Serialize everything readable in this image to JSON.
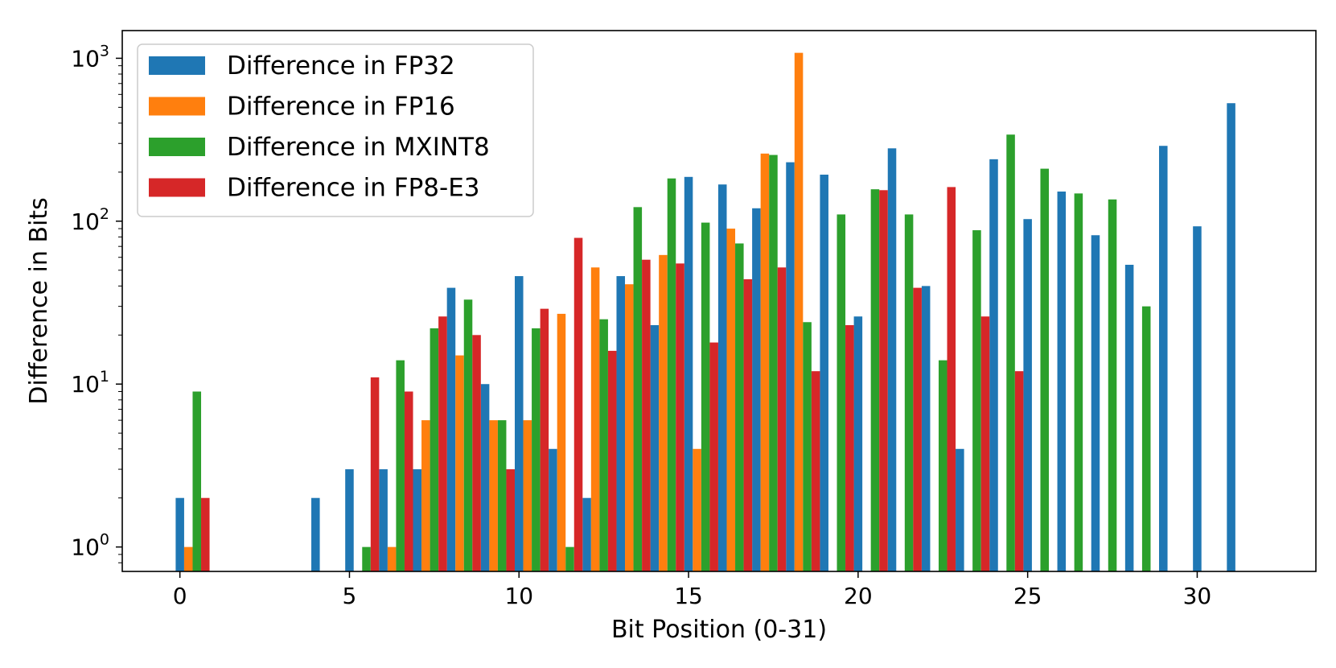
{
  "chart_data": {
    "type": "bar",
    "xlabel": "Bit Position (0-31)",
    "ylabel": "Difference in Bits",
    "xlim": [
      -1.7,
      33.5
    ],
    "ylim_log10": [
      -0.15,
      3.17
    ],
    "yscale": "log",
    "x_ticks": [
      0,
      5,
      10,
      15,
      20,
      25,
      30
    ],
    "y_ticks": [
      {
        "base": "10",
        "exp": "0",
        "value": 1
      },
      {
        "base": "10",
        "exp": "1",
        "value": 10
      },
      {
        "base": "10",
        "exp": "2",
        "value": 100
      },
      {
        "base": "10",
        "exp": "3",
        "value": 1000
      }
    ],
    "legend_position": "top-left",
    "grid": false,
    "bar_width": 0.25,
    "series": [
      {
        "name": "Difference in FP32",
        "color": "#1f77b4",
        "offset": 0,
        "points": [
          [
            0,
            2
          ],
          [
            4,
            2
          ],
          [
            5,
            3
          ],
          [
            6,
            3
          ],
          [
            7,
            3
          ],
          [
            8,
            39
          ],
          [
            9,
            10
          ],
          [
            10,
            46
          ],
          [
            11,
            4
          ],
          [
            12,
            2
          ],
          [
            13,
            46
          ],
          [
            14,
            23
          ],
          [
            15,
            187
          ],
          [
            16,
            168
          ],
          [
            17,
            120
          ],
          [
            18,
            230
          ],
          [
            19,
            193
          ],
          [
            20,
            26
          ],
          [
            21,
            280
          ],
          [
            22,
            40
          ],
          [
            23,
            4
          ],
          [
            24,
            240
          ],
          [
            25,
            103
          ],
          [
            26,
            152
          ],
          [
            27,
            82
          ],
          [
            28,
            54
          ],
          [
            29,
            290
          ],
          [
            30,
            93
          ],
          [
            31,
            530
          ]
        ]
      },
      {
        "name": "Difference in FP16",
        "color": "#ff7f0e",
        "offset": 0.25,
        "points": [
          [
            0,
            1
          ],
          [
            6,
            1
          ],
          [
            7,
            6
          ],
          [
            8,
            15
          ],
          [
            9,
            6
          ],
          [
            10,
            6
          ],
          [
            11,
            27
          ],
          [
            12,
            52
          ],
          [
            13,
            41
          ],
          [
            14,
            62
          ],
          [
            15,
            4
          ],
          [
            16,
            90
          ],
          [
            17,
            260
          ],
          [
            18,
            1080
          ]
        ]
      },
      {
        "name": "Difference in MXINT8",
        "color": "#2ca02c",
        "offset": 0.5,
        "points": [
          [
            0,
            9
          ],
          [
            5,
            1
          ],
          [
            6,
            14
          ],
          [
            7,
            22
          ],
          [
            8,
            33
          ],
          [
            9,
            6
          ],
          [
            10,
            22
          ],
          [
            11,
            1
          ],
          [
            12,
            25
          ],
          [
            13,
            122
          ],
          [
            14,
            183
          ],
          [
            15,
            98
          ],
          [
            16,
            73
          ],
          [
            17,
            255
          ],
          [
            18,
            24
          ],
          [
            19,
            110
          ],
          [
            20,
            157
          ],
          [
            21,
            110
          ],
          [
            22,
            14
          ],
          [
            23,
            88
          ],
          [
            24,
            340
          ],
          [
            25,
            210
          ],
          [
            26,
            148
          ],
          [
            27,
            136
          ],
          [
            28,
            30
          ]
        ]
      },
      {
        "name": "Difference in FP8-E3",
        "color": "#d62728",
        "offset": 0.75,
        "points": [
          [
            0,
            2
          ],
          [
            5,
            11
          ],
          [
            6,
            9
          ],
          [
            7,
            26
          ],
          [
            8,
            20
          ],
          [
            9,
            3
          ],
          [
            10,
            29
          ],
          [
            11,
            79
          ],
          [
            12,
            16
          ],
          [
            13,
            58
          ],
          [
            14,
            55
          ],
          [
            15,
            18
          ],
          [
            16,
            44
          ],
          [
            17,
            52
          ],
          [
            18,
            12
          ],
          [
            19,
            23
          ],
          [
            20,
            155
          ],
          [
            21,
            39
          ],
          [
            22,
            162
          ],
          [
            23,
            26
          ],
          [
            24,
            12
          ]
        ]
      }
    ]
  }
}
